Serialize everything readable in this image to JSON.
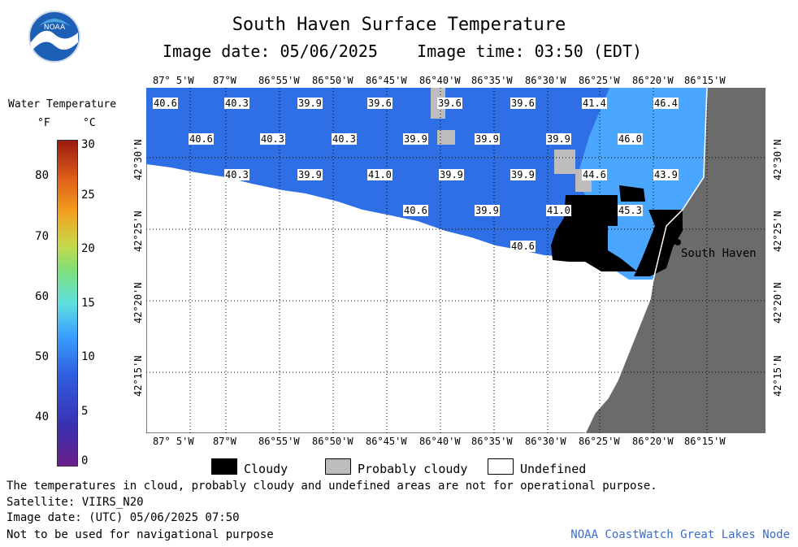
{
  "header": {
    "title": "South Haven Surface Temperature",
    "image_date": "Image date: 05/06/2025",
    "image_time": "Image time: 03:50 (EDT)"
  },
  "logo": {
    "label": "NOAA"
  },
  "legend": {
    "title": "Water Temperature",
    "unit_f": "°F",
    "unit_c": "°C",
    "ticks_f": [
      "80",
      "70",
      "60",
      "50",
      "40"
    ],
    "ticks_c": [
      "30",
      "25",
      "20",
      "15",
      "10",
      "5",
      "0"
    ]
  },
  "map": {
    "lon_labels": [
      "87° 5'W",
      "87°W",
      "86°55'W",
      "86°50'W",
      "86°45'W",
      "86°40'W",
      "86°35'W",
      "86°30'W",
      "86°25'W",
      "86°20'W",
      "86°15'W"
    ],
    "lat_labels": [
      "42°30'N",
      "42°25'N",
      "42°20'N",
      "42°15'N"
    ],
    "place": "South Haven",
    "temps": [
      "40.6",
      "40.3",
      "39.9",
      "39.6",
      "39.6",
      "39.6",
      "41.4",
      "46.4",
      "40.6",
      "40.3",
      "40.3",
      "39.9",
      "39.9",
      "39.9",
      "46.0",
      "40.3",
      "39.9",
      "41.0",
      "39.9",
      "39.9",
      "44.6",
      "43.9",
      "40.6",
      "39.9",
      "41.0",
      "45.3",
      "40.6"
    ]
  },
  "key": {
    "cloudy": "Cloudy",
    "probably_cloudy": "Probably cloudy",
    "undefined": "Undefined"
  },
  "footer": {
    "line1": "The temperatures in cloud, probably cloudy and undefined areas are not for operational purpose.",
    "line2": "Satellite: VIIRS_N20",
    "line3": "Image date: (UTC) 05/06/2025  07:50",
    "line4": "Not to be used for navigational purpose",
    "credit": "NOAA CoastWatch Great Lakes Node"
  },
  "colors": {
    "water": "#2f6fe6",
    "water_warm": "#4aa6ff",
    "land": "#6b6b6b",
    "cloud": "#000000",
    "probably_cloudy": "#bdbdbd",
    "undefined": "#ffffff"
  }
}
